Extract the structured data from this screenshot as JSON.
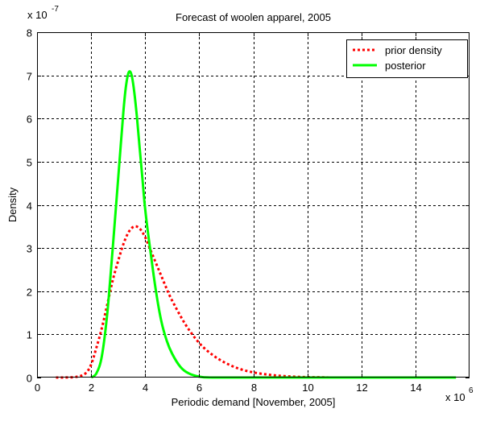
{
  "chart_data": {
    "type": "line",
    "title": "Forecast of woolen apparel, 2005",
    "xlabel": "Periodic demand [November, 2005]",
    "ylabel": "Density",
    "x_multiplier": "x 10",
    "x_exponent": "6",
    "y_multiplier": "x 10",
    "y_exponent": "-7",
    "xlim": [
      0,
      16
    ],
    "ylim": [
      0,
      8
    ],
    "xticks": [
      "0",
      "2",
      "4",
      "6",
      "8",
      "10",
      "12",
      "14"
    ],
    "yticks": [
      "0",
      "1",
      "2",
      "3",
      "4",
      "5",
      "6",
      "7",
      "8"
    ],
    "grid": true,
    "legend_position": "top-right",
    "series": [
      {
        "name": "prior density",
        "color": "#ff0000",
        "style": "dotted",
        "x": [
          0.7,
          1.0,
          1.5,
          1.8,
          2.0,
          2.2,
          2.4,
          2.6,
          2.8,
          3.0,
          3.2,
          3.4,
          3.6,
          3.8,
          4.0,
          4.2,
          4.4,
          4.6,
          4.8,
          5.0,
          5.5,
          6.0,
          6.5,
          7.0,
          7.5,
          8.0,
          8.5,
          9.0,
          9.5,
          10.0,
          10.5,
          11.0,
          12.0,
          13.0,
          14.0,
          15.5
        ],
        "y": [
          0.0,
          0.0,
          0.02,
          0.1,
          0.3,
          0.7,
          1.15,
          1.7,
          2.25,
          2.7,
          3.1,
          3.38,
          3.5,
          3.45,
          3.25,
          2.95,
          2.65,
          2.35,
          2.05,
          1.78,
          1.22,
          0.8,
          0.52,
          0.33,
          0.2,
          0.12,
          0.07,
          0.04,
          0.02,
          0.01,
          0.005,
          0.0,
          0.0,
          0.0,
          0.0,
          0.0
        ]
      },
      {
        "name": "posterior",
        "color": "#00ff00",
        "style": "solid",
        "x": [
          2.0,
          2.2,
          2.4,
          2.6,
          2.8,
          3.0,
          3.1,
          3.2,
          3.3,
          3.4,
          3.5,
          3.6,
          3.7,
          3.8,
          3.9,
          4.0,
          4.2,
          4.4,
          4.6,
          4.8,
          5.0,
          5.3,
          5.6,
          6.0,
          6.5,
          8.0,
          10.0,
          12.0,
          15.5
        ],
        "y": [
          0.0,
          0.1,
          0.5,
          1.5,
          3.0,
          4.6,
          5.4,
          6.2,
          6.8,
          7.08,
          7.0,
          6.6,
          6.0,
          5.3,
          4.6,
          3.9,
          2.9,
          2.0,
          1.3,
          0.85,
          0.55,
          0.25,
          0.1,
          0.02,
          0.0,
          0.0,
          0.0,
          0.0,
          0.0
        ]
      }
    ]
  }
}
